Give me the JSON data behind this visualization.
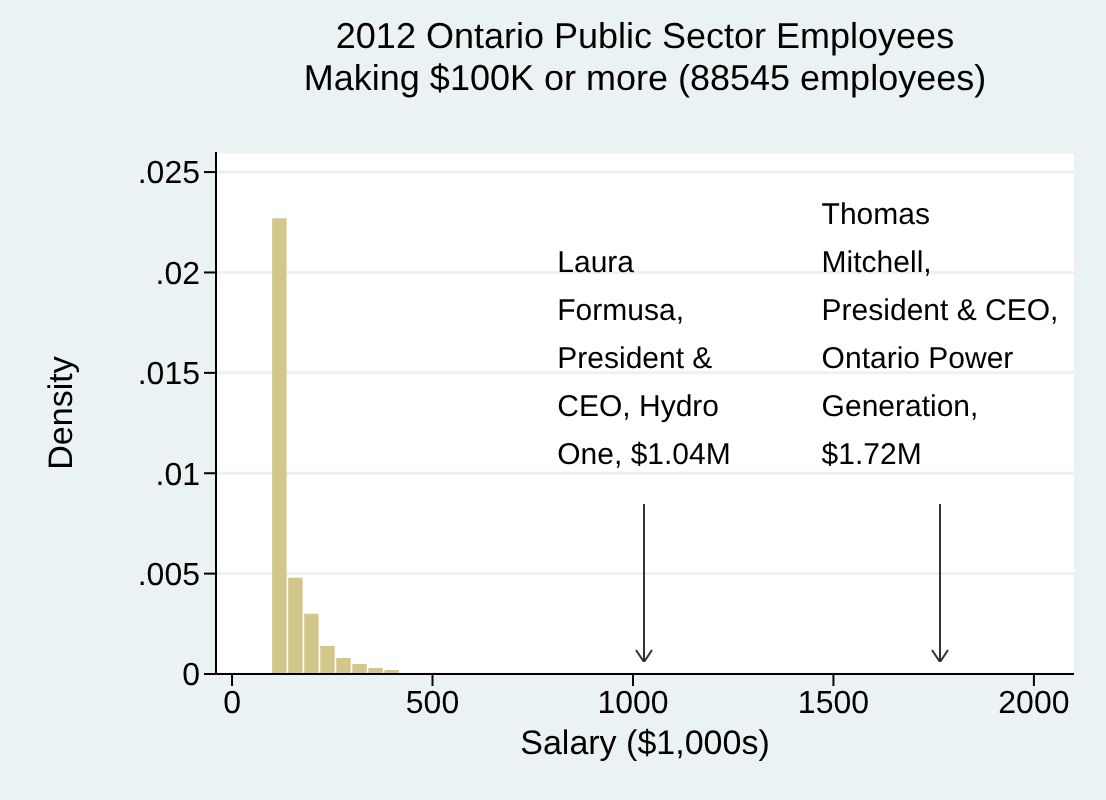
{
  "chart_data": {
    "type": "histogram",
    "title": "2012 Ontario Public Sector Employees",
    "subtitle": "Making $100K or more (88545 employees)",
    "xlabel": "Salary ($1,000s)",
    "ylabel": "Density",
    "bins": [
      100,
      140,
      180,
      220,
      260,
      300,
      340,
      380,
      420
    ],
    "values": [
      0.0227,
      0.0048,
      0.003,
      0.0014,
      0.0008,
      0.0005,
      0.0003,
      0.0002
    ],
    "color": "#d3c68a",
    "xlim": [
      -40,
      2100
    ],
    "xticks": [
      0,
      500,
      1000,
      1500,
      2000
    ],
    "ylim": [
      0,
      0.026
    ],
    "yticks": [
      {
        "value": 0,
        "label": "0"
      },
      {
        "value": 0.005,
        "label": ".005"
      },
      {
        "value": 0.01,
        "label": ".01"
      },
      {
        "value": 0.015,
        "label": ".015"
      },
      {
        "value": 0.02,
        "label": ".02"
      },
      {
        "value": 0.025,
        "label": ".025"
      }
    ],
    "grid": "y",
    "annotations": [
      "Laura\nFormusa,\nPresident &\nCEO, Hydro\nOne, $1.04M",
      "Thomas\nMitchell,\nPresident & CEO,\nOntario Power\nGeneration,\n$1.72M"
    ]
  }
}
